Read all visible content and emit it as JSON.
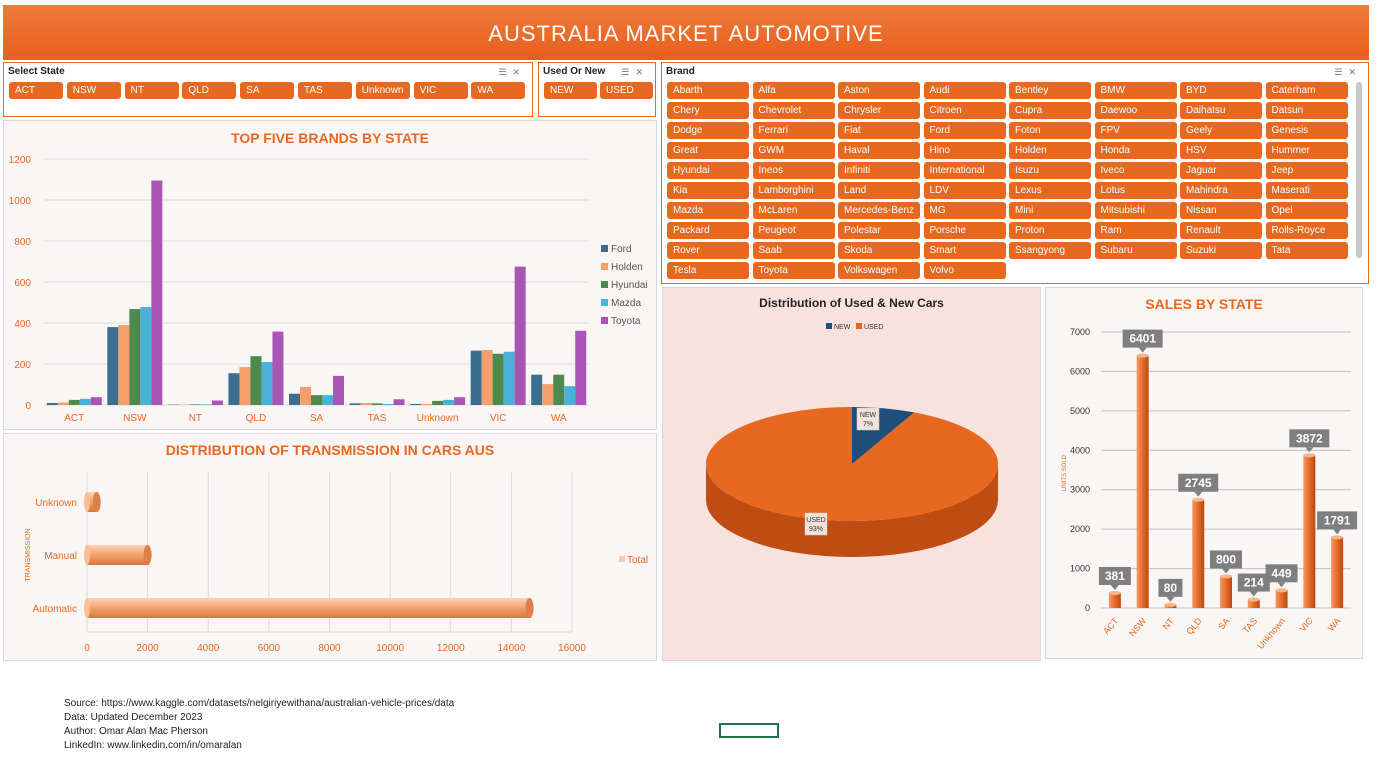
{
  "title": "AUSTRALIA MARKET AUTOMOTIVE",
  "slicers": {
    "state": {
      "title": "Select State",
      "items": [
        "ACT",
        "NSW",
        "NT",
        "QLD",
        "SA",
        "TAS",
        "Unknown",
        "VIC",
        "WA"
      ]
    },
    "used_new": {
      "title": "Used Or New",
      "items": [
        "NEW",
        "USED"
      ]
    },
    "brand": {
      "title": "Brand",
      "items": [
        "Abarth",
        "Alfa",
        "Aston",
        "Audi",
        "Bentley",
        "BMW",
        "BYD",
        "Caterham",
        "Chery",
        "Chevrolet",
        "Chrysler",
        "Citroen",
        "Cupra",
        "Daewoo",
        "Daihatsu",
        "Datsun",
        "Dodge",
        "Ferrari",
        "Fiat",
        "Ford",
        "Foton",
        "FPV",
        "Geely",
        "Genesis",
        "Great",
        "GWM",
        "Haval",
        "Hino",
        "Holden",
        "Honda",
        "HSV",
        "Hummer",
        "Hyundai",
        "Ineos",
        "Infiniti",
        "International",
        "Isuzu",
        "Iveco",
        "Jaguar",
        "Jeep",
        "Kia",
        "Lamborghini",
        "Land",
        "LDV",
        "Lexus",
        "Lotus",
        "Mahindra",
        "Maserati",
        "Mazda",
        "McLaren",
        "Mercedes-Benz",
        "MG",
        "Mini",
        "Mitsubishi",
        "Nissan",
        "Opel",
        "Packard",
        "Peugeot",
        "Polestar",
        "Porsche",
        "Proton",
        "Ram",
        "Renault",
        "Rolls-Royce",
        "Rover",
        "Saab",
        "Skoda",
        "Smart",
        "Ssangyong",
        "Subaru",
        "Suzuki",
        "Tata",
        "Tesla",
        "Toyota",
        "Volkswagen",
        "Volvo"
      ]
    }
  },
  "colors": {
    "accent": "#e8681f",
    "ford": "#3b6e8f",
    "holden": "#f4a06a",
    "hyundai": "#4e8a4c",
    "mazda": "#4bb1d9",
    "toyota": "#a855b5",
    "new": "#1f4e79",
    "used": "#e8681f"
  },
  "chart_data": [
    {
      "type": "bar",
      "title": "TOP FIVE BRANDS BY STATE",
      "categories": [
        "ACT",
        "NSW",
        "NT",
        "QLD",
        "SA",
        "TAS",
        "Unknown",
        "VIC",
        "WA"
      ],
      "series": [
        {
          "name": "Ford",
          "values": [
            10,
            380,
            2,
            155,
            55,
            8,
            5,
            265,
            148
          ]
        },
        {
          "name": "Holden",
          "values": [
            12,
            390,
            2,
            185,
            88,
            10,
            5,
            268,
            102
          ]
        },
        {
          "name": "Hyundai",
          "values": [
            25,
            468,
            3,
            238,
            48,
            8,
            20,
            250,
            148
          ]
        },
        {
          "name": "Mazda",
          "values": [
            30,
            478,
            3,
            210,
            48,
            5,
            25,
            260,
            92
          ]
        },
        {
          "name": "Toyota",
          "values": [
            38,
            1095,
            22,
            358,
            142,
            28,
            38,
            675,
            362
          ]
        }
      ],
      "ylim": [
        0,
        1200
      ],
      "yticks": [
        0,
        200,
        400,
        600,
        800,
        1000,
        1200
      ],
      "legend": "right",
      "grid": true
    },
    {
      "type": "bar",
      "orientation": "horizontal",
      "title": "DISTRIBUTION OF TRANSMISSION IN CARS AUS",
      "ylabel": "TRANSMISSION",
      "categories": [
        "Unknown",
        "Manual",
        "Automatic"
      ],
      "series": [
        {
          "name": "Total",
          "values": [
            320,
            2000,
            14600
          ]
        }
      ],
      "xlim": [
        0,
        16000
      ],
      "xticks": [
        0,
        2000,
        4000,
        6000,
        8000,
        10000,
        12000,
        14000,
        16000
      ],
      "legend": "right",
      "grid": true
    },
    {
      "type": "pie",
      "title": "Distribution of Used & New Cars",
      "labels": [
        "NEW",
        "USED"
      ],
      "values": [
        7,
        93
      ],
      "data_labels": [
        "7%",
        "93%"
      ],
      "legend": "top"
    },
    {
      "type": "bar",
      "title": "SALES BY STATE",
      "ylabel": "UNITS SOLD",
      "categories": [
        "ACT",
        "NSW",
        "NT",
        "QLD",
        "SA",
        "TAS",
        "Unknown",
        "VIC",
        "WA"
      ],
      "values": [
        381,
        6401,
        80,
        2745,
        800,
        214,
        449,
        3872,
        1791
      ],
      "ylim": [
        0,
        7000
      ],
      "yticks": [
        0,
        1000,
        2000,
        3000,
        4000,
        5000,
        6000,
        7000
      ],
      "grid": true
    }
  ],
  "footer": {
    "source": "Source: https://www.kaggle.com/datasets/nelgiriyewithana/australian-vehicle-prices/data",
    "data": "Data: Updated December 2023",
    "author": "Author: Omar Alan Mac Pherson",
    "linkedin": "LinkedIn: www.linkedin.com/in/omaralan"
  }
}
